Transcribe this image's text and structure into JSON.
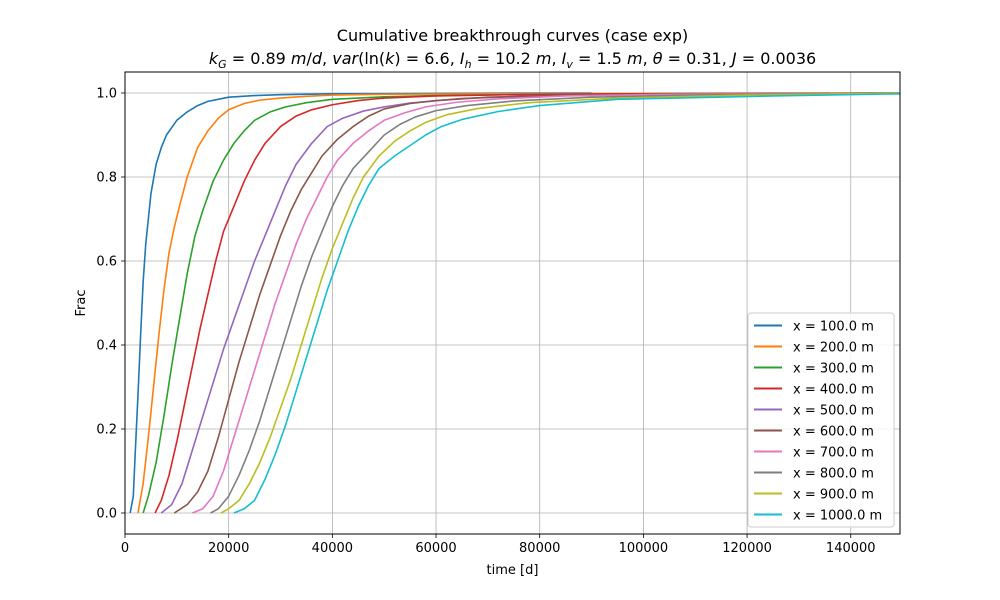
{
  "chart_data": {
    "type": "line",
    "title": "Cumulative breakthrough curves (case exp)",
    "subtitle": "k_G = 0.89 m/d, var(ln(k) = 6.6, I_h = 10.2 m, I_v = 1.5 m, θ = 0.31, J = 0.0036",
    "xlabel": "time [d]",
    "ylabel": "Frac",
    "xlim": [
      0,
      149500
    ],
    "ylim": [
      -0.05,
      1.05
    ],
    "xticks": [
      0,
      20000,
      40000,
      60000,
      80000,
      100000,
      120000,
      140000
    ],
    "yticks": [
      0.0,
      0.2,
      0.4,
      0.6,
      0.8,
      1.0
    ],
    "xtick_labels": [
      "0",
      "20000",
      "40000",
      "60000",
      "80000",
      "100000",
      "120000",
      "140000"
    ],
    "ytick_labels": [
      "0.0",
      "0.2",
      "0.4",
      "0.6",
      "0.8",
      "1.0"
    ],
    "grid": true,
    "legend_position": "lower-right",
    "series": [
      {
        "name": "x = 100.0 m",
        "color": "#1f77b4",
        "x": [
          1000,
          1600,
          2000,
          2500,
          3000,
          3500,
          4000,
          5000,
          6000,
          7000,
          8000,
          10000,
          12000,
          14000,
          16000,
          18000,
          20000,
          25000,
          30000,
          40000,
          60000,
          90000
        ],
        "y": [
          0.0,
          0.04,
          0.15,
          0.28,
          0.42,
          0.55,
          0.64,
          0.76,
          0.83,
          0.87,
          0.9,
          0.935,
          0.955,
          0.97,
          0.98,
          0.985,
          0.99,
          0.994,
          0.996,
          0.998,
          0.999,
          1.0
        ]
      },
      {
        "name": "x = 200.0 m",
        "color": "#ff7f0e",
        "x": [
          2500,
          3500,
          4500,
          5500,
          6500,
          7500,
          8500,
          9500,
          10500,
          12000,
          14000,
          16000,
          18000,
          20000,
          23000,
          26000,
          30000,
          35000,
          40000,
          50000,
          70000,
          100000,
          136000
        ],
        "y": [
          0.0,
          0.07,
          0.18,
          0.3,
          0.42,
          0.53,
          0.62,
          0.68,
          0.73,
          0.8,
          0.87,
          0.91,
          0.94,
          0.96,
          0.975,
          0.983,
          0.988,
          0.992,
          0.995,
          0.997,
          0.998,
          0.999,
          1.0
        ]
      },
      {
        "name": "x = 300.0 m",
        "color": "#2ca02c",
        "x": [
          3500,
          4500,
          6000,
          7500,
          9000,
          10500,
          12000,
          13500,
          15000,
          17000,
          19000,
          21000,
          23000,
          25000,
          28000,
          31000,
          35000,
          40000,
          50000,
          60000,
          80000,
          110000,
          149500
        ],
        "y": [
          0.0,
          0.04,
          0.12,
          0.23,
          0.35,
          0.46,
          0.57,
          0.66,
          0.72,
          0.79,
          0.84,
          0.88,
          0.91,
          0.935,
          0.955,
          0.967,
          0.977,
          0.985,
          0.991,
          0.994,
          0.997,
          0.999,
          1.0
        ]
      },
      {
        "name": "x = 400.0 m",
        "color": "#d62728",
        "x": [
          5800,
          7000,
          8500,
          10000,
          11500,
          13000,
          14500,
          16000,
          17500,
          19000,
          21000,
          23000,
          25000,
          27000,
          30000,
          33000,
          36000,
          40000,
          45000,
          50000,
          60000,
          75000,
          95000,
          120000,
          149500
        ],
        "y": [
          0.0,
          0.03,
          0.09,
          0.17,
          0.26,
          0.35,
          0.44,
          0.52,
          0.6,
          0.67,
          0.73,
          0.79,
          0.84,
          0.88,
          0.92,
          0.945,
          0.96,
          0.972,
          0.982,
          0.988,
          0.993,
          0.996,
          0.998,
          0.999,
          1.0
        ]
      },
      {
        "name": "x = 500.0 m",
        "color": "#9467bd",
        "x": [
          7000,
          9000,
          11000,
          13000,
          15000,
          17000,
          19000,
          21000,
          23000,
          25000,
          27000,
          29000,
          31000,
          33000,
          36000,
          39000,
          42000,
          46000,
          50000,
          55000,
          65000,
          80000,
          100000,
          130000,
          149500
        ],
        "y": [
          0.0,
          0.02,
          0.07,
          0.15,
          0.23,
          0.31,
          0.39,
          0.46,
          0.53,
          0.6,
          0.66,
          0.72,
          0.78,
          0.83,
          0.88,
          0.92,
          0.94,
          0.957,
          0.967,
          0.976,
          0.987,
          0.993,
          0.996,
          0.998,
          1.0
        ]
      },
      {
        "name": "x = 600.0 m",
        "color": "#8c564b",
        "x": [
          9500,
          12000,
          14000,
          16000,
          18000,
          20000,
          22000,
          24000,
          26000,
          28000,
          30000,
          32000,
          34000,
          36000,
          38000,
          41000,
          44000,
          47000,
          50000,
          55000,
          60000,
          70000,
          85000,
          110000,
          149500
        ],
        "y": [
          0.0,
          0.02,
          0.05,
          0.1,
          0.18,
          0.27,
          0.36,
          0.44,
          0.52,
          0.59,
          0.66,
          0.72,
          0.77,
          0.81,
          0.85,
          0.89,
          0.92,
          0.945,
          0.962,
          0.975,
          0.982,
          0.99,
          0.995,
          0.998,
          1.0
        ]
      },
      {
        "name": "x = 700.0 m",
        "color": "#e377c2",
        "x": [
          13000,
          15000,
          17000,
          19000,
          21000,
          23000,
          25000,
          27000,
          29000,
          31000,
          33000,
          35000,
          37000,
          39000,
          41000,
          44000,
          47000,
          50000,
          54000,
          58000,
          64000,
          72000,
          85000,
          105000,
          149500
        ],
        "y": [
          0.0,
          0.01,
          0.04,
          0.1,
          0.18,
          0.26,
          0.34,
          0.42,
          0.5,
          0.57,
          0.64,
          0.7,
          0.75,
          0.8,
          0.84,
          0.88,
          0.91,
          0.935,
          0.953,
          0.967,
          0.978,
          0.986,
          0.993,
          0.997,
          1.0
        ]
      },
      {
        "name": "x = 800.0 m",
        "color": "#7f7f7f",
        "x": [
          16500,
          18000,
          20000,
          22000,
          24000,
          26000,
          28000,
          30000,
          32000,
          34000,
          36000,
          38000,
          40000,
          42000,
          44000,
          47000,
          50000,
          53000,
          56000,
          60000,
          66000,
          75000,
          90000,
          115000,
          149500
        ],
        "y": [
          0.0,
          0.01,
          0.04,
          0.09,
          0.15,
          0.22,
          0.3,
          0.38,
          0.46,
          0.54,
          0.61,
          0.67,
          0.73,
          0.78,
          0.82,
          0.86,
          0.9,
          0.925,
          0.943,
          0.958,
          0.97,
          0.981,
          0.99,
          0.996,
          1.0
        ]
      },
      {
        "name": "x = 900.0 m",
        "color": "#bcbd22",
        "x": [
          18500,
          20000,
          22000,
          24000,
          26000,
          28000,
          30000,
          32000,
          34000,
          36000,
          38000,
          40000,
          42000,
          44000,
          46000,
          49000,
          52000,
          55000,
          58000,
          62000,
          68000,
          78000,
          95000,
          120000,
          149500
        ],
        "y": [
          0.0,
          0.01,
          0.03,
          0.07,
          0.12,
          0.18,
          0.25,
          0.32,
          0.4,
          0.48,
          0.56,
          0.63,
          0.69,
          0.75,
          0.8,
          0.85,
          0.885,
          0.91,
          0.93,
          0.948,
          0.963,
          0.977,
          0.988,
          0.995,
          1.0
        ]
      },
      {
        "name": "x = 1000.0 m",
        "color": "#17becf",
        "x": [
          21000,
          23000,
          25000,
          27000,
          29000,
          31000,
          33000,
          35000,
          37000,
          39000,
          41000,
          43000,
          45000,
          47000,
          49000,
          52000,
          55000,
          58000,
          61000,
          65000,
          72000,
          80000,
          95000,
          125000,
          149500
        ],
        "y": [
          0.0,
          0.01,
          0.03,
          0.08,
          0.14,
          0.21,
          0.29,
          0.37,
          0.45,
          0.53,
          0.6,
          0.67,
          0.73,
          0.78,
          0.82,
          0.85,
          0.875,
          0.9,
          0.92,
          0.937,
          0.956,
          0.97,
          0.985,
          0.993,
          0.998
        ]
      }
    ]
  }
}
